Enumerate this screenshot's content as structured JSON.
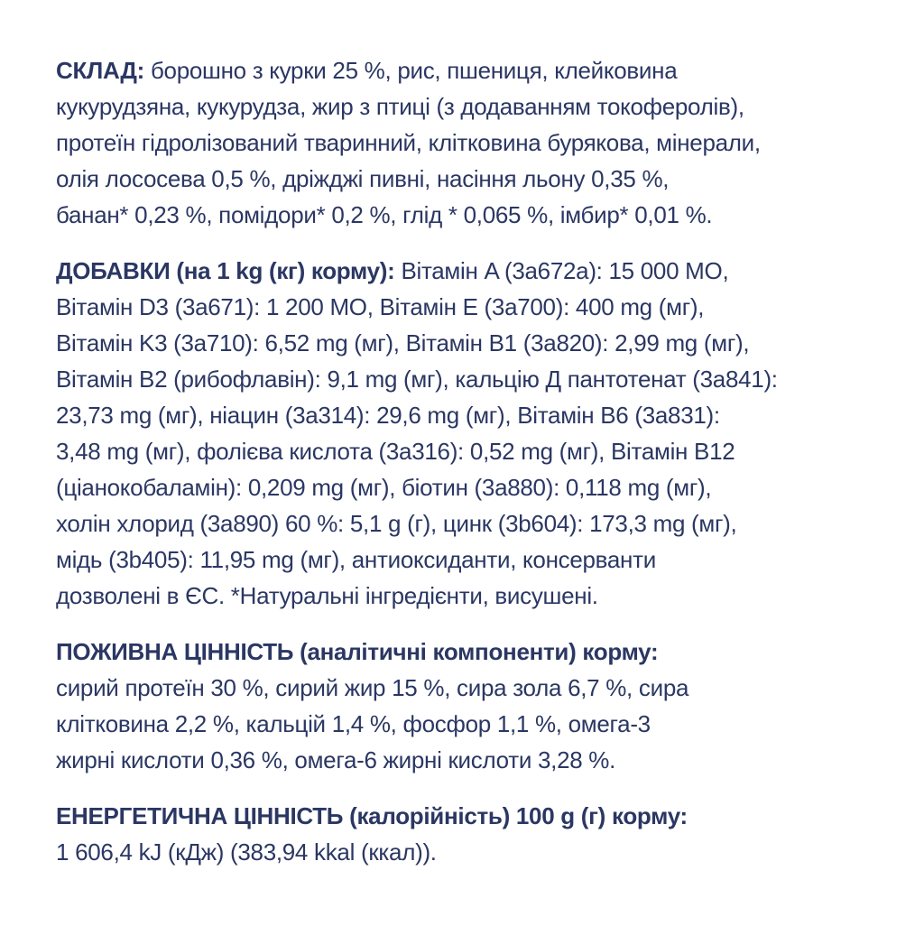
{
  "page": {
    "background_color": "#ffffff",
    "text_color": "#2b3763",
    "language": "uk"
  },
  "sections": [
    {
      "id": "composition",
      "label": "СКЛАД:",
      "lines": [
        " борошно з курки 25 %, рис, пшениця, клейковина",
        "кукурудзяна, кукурудза, жир з птиці (з додаванням токоферолів),",
        "протеїн гідролізований тваринний, клітковина бурякова, мінерали,",
        "олія лососева 0,5 %, дріжджі пивні, насіння льону 0,35 %,",
        "банан* 0,23 %, помідори* 0,2 %, глід * 0,065 %, імбир* 0,01 %."
      ]
    },
    {
      "id": "additives",
      "label": "ДОБАВКИ (на 1 kg (кг) корму):",
      "lines": [
        " Вітамін A (3a672a): 15 000 МО,",
        "Вітамін D3 (3a671): 1 200 МО, Вітамін E (3a700): 400 mg (мг),",
        "Вітамін K3 (3a710): 6,52 mg (мг), Вітамін B1 (3a820): 2,99 mg (мг),",
        "Вітамін B2 (рибофлавін): 9,1 mg (мг), кальцію Д пантотенат (3a841):",
        "23,73 mg (мг), ніацин (3a314): 29,6 mg (мг), Вітамін B6 (3a831):",
        "3,48 mg (мг), фолієва кислота (3a316): 0,52 mg (мг), Вітамін B12",
        "(ціанокобаламін): 0,209 mg (мг), біотин (3a880): 0,118 mg (мг),",
        "холін хлорид (3a890) 60 %: 5,1 g (г), цинк (3b604): 173,3 mg (мг),",
        "мідь (3b405): 11,95 mg (мг), антиоксиданти, консерванти",
        "дозволені в ЄС. *Натуральні інгредієнти, висушені."
      ]
    },
    {
      "id": "nutritional-value",
      "label": "ПОЖИВНА ЦІННІСТЬ (аналітичні компоненти) корму:",
      "lines": [
        "сирий протеїн 30 %, сирий жир 15 %, сира зола 6,7 %, сира",
        "клітковина 2,2 %, кальцій 1,4 %, фосфор 1,1 %, омега-3",
        "жирні кислоти 0,36 %, омега-6 жирні кислоти 3,28 %."
      ]
    },
    {
      "id": "energy-value",
      "label": "ЕНЕРГЕТИЧНА ЦІННІСТЬ (калорійність) 100 g (г) корму:",
      "lines": [
        "1 606,4 kJ (кДж) (383,94 kkal (ккал))."
      ]
    }
  ]
}
